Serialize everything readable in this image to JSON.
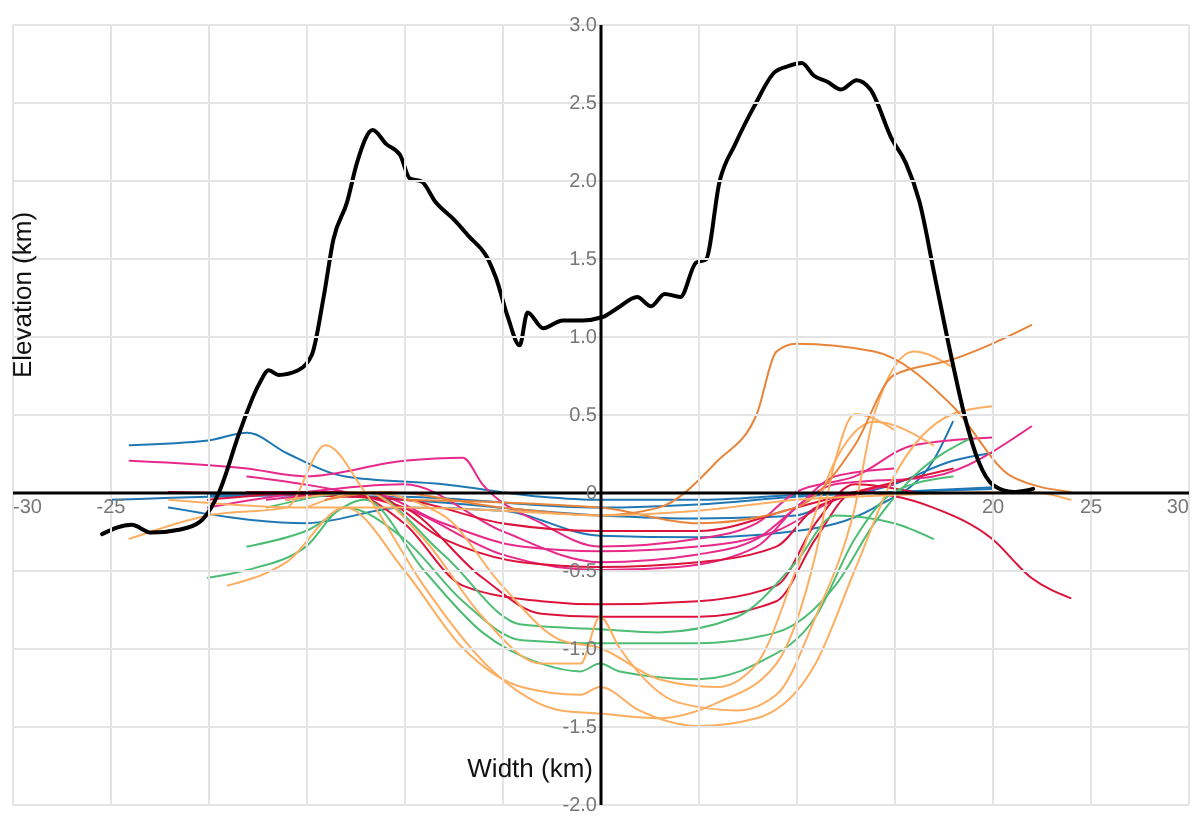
{
  "chart_data": {
    "type": "line",
    "xlabel": "Width (km)",
    "ylabel": "Elevation (km)",
    "xlim": [
      -30,
      30
    ],
    "ylim": [
      -2,
      3
    ],
    "xticks": [
      -30,
      -25,
      {
        "value": -20,
        "label": null
      },
      {
        "value": -15,
        "label": null
      },
      {
        "value": -10,
        "label": null
      },
      {
        "value": -5,
        "label": null
      },
      {
        "value": 0,
        "label": null
      },
      {
        "value": 5,
        "label": null
      },
      {
        "value": 10,
        "label": null
      },
      {
        "value": 15,
        "label": null
      },
      20,
      25,
      30
    ],
    "yticks": [
      {
        "value": -2,
        "label": "-2.0"
      },
      {
        "value": -1.5,
        "label": "-1.5"
      },
      {
        "value": -1,
        "label": "-1.0"
      },
      {
        "value": -0.5,
        "label": "-0.5"
      },
      0,
      {
        "value": 0.5,
        "label": "0.5"
      },
      {
        "value": 1,
        "label": "1.0"
      },
      {
        "value": 1.5,
        "label": "1.5"
      },
      {
        "value": 2,
        "label": "2.0"
      },
      {
        "value": 2.5,
        "label": "2.5"
      },
      {
        "value": 3,
        "label": "3.0"
      }
    ],
    "grid": true,
    "legend": false,
    "series": [
      {
        "color": "#1f77b4",
        "x": [
          -24,
          -20,
          -18,
          -16,
          -13,
          -8,
          -3,
          0,
          5,
          10,
          15,
          20
        ],
        "values": [
          0.3,
          0.33,
          0.38,
          0.25,
          0.1,
          0.05,
          -0.03,
          -0.05,
          -0.05,
          -0.02,
          0,
          0.03
        ]
      },
      {
        "color": "#1f77b4",
        "x": [
          -25,
          -15,
          -10,
          0,
          5,
          10,
          12,
          15,
          18,
          20
        ],
        "values": [
          -0.05,
          -0.02,
          -0.05,
          -0.15,
          -0.17,
          -0.15,
          -0.05,
          0.05,
          0.2,
          0.25
        ]
      },
      {
        "color": "#1f77b4",
        "x": [
          -22,
          -15,
          -10,
          -5,
          0,
          5,
          10,
          14,
          17,
          18
        ],
        "values": [
          -0.1,
          -0.2,
          -0.1,
          -0.12,
          -0.28,
          -0.29,
          -0.25,
          -0.1,
          0.2,
          0.45
        ]
      },
      {
        "color": "#1f77b4",
        "x": [
          -20,
          -10,
          0,
          5,
          10,
          15,
          20
        ],
        "values": [
          -0.02,
          -0.03,
          -0.1,
          -0.08,
          -0.03,
          0,
          0.02
        ]
      },
      {
        "color": "#e7298a",
        "x": [
          -24,
          -18,
          -15,
          -10,
          -7,
          -6,
          -3,
          0,
          5,
          8,
          10,
          13,
          16,
          20
        ],
        "values": [
          0.2,
          0.15,
          0.1,
          0.2,
          0.22,
          0.05,
          -0.2,
          -0.35,
          -0.3,
          -0.2,
          0,
          0.1,
          0.3,
          0.35
        ]
      },
      {
        "color": "#e7298a",
        "x": [
          -20,
          -15,
          -10,
          -5,
          0,
          5,
          8,
          10,
          12,
          15
        ],
        "values": [
          -0.1,
          0,
          0.05,
          -0.25,
          -0.45,
          -0.4,
          -0.3,
          -0.1,
          0.1,
          0.15
        ]
      },
      {
        "color": "#e7298a",
        "x": [
          -18,
          -13,
          -10,
          -5,
          0,
          4,
          8,
          10,
          12,
          17,
          22
        ],
        "values": [
          0.1,
          0,
          -0.1,
          -0.4,
          -0.5,
          -0.48,
          -0.35,
          -0.1,
          0.05,
          0.1,
          0.42
        ]
      },
      {
        "color": "#e7298a",
        "x": [
          -17,
          -12,
          -8,
          -4,
          0,
          5,
          9,
          12,
          15
        ],
        "values": [
          -0.05,
          0,
          -0.2,
          -0.35,
          -0.38,
          -0.35,
          -0.25,
          -0.05,
          0.05
        ]
      },
      {
        "color": "#dc143c",
        "x": [
          -20,
          -14,
          -10,
          -6,
          -3,
          0,
          5,
          9,
          11,
          13,
          17,
          20,
          22,
          24
        ],
        "values": [
          -0.05,
          0,
          -0.1,
          -0.55,
          -0.78,
          -0.8,
          -0.8,
          -0.7,
          -0.3,
          0,
          -0.1,
          -0.3,
          -0.55,
          -0.68
        ]
      },
      {
        "color": "#dc143c",
        "x": [
          -18,
          -13,
          -10,
          -7,
          -3,
          0,
          5,
          9,
          11,
          13,
          16
        ],
        "values": [
          0,
          0,
          -0.2,
          -0.6,
          -0.7,
          -0.72,
          -0.7,
          -0.6,
          -0.2,
          0.05,
          0
        ]
      },
      {
        "color": "#dc143c",
        "x": [
          -16,
          -12,
          -8,
          -4,
          0,
          5,
          9,
          11,
          14
        ],
        "values": [
          -0.05,
          0,
          -0.3,
          -0.45,
          -0.48,
          -0.45,
          -0.35,
          -0.1,
          0
        ]
      },
      {
        "color": "#dc143c",
        "x": [
          -22,
          -15,
          -10,
          -5,
          0,
          5,
          10,
          13,
          18
        ],
        "values": [
          0,
          -0.02,
          -0.05,
          -0.2,
          -0.25,
          -0.25,
          -0.1,
          0,
          0.15
        ]
      },
      {
        "color": "#4dbd74",
        "x": [
          -20,
          -18,
          -15,
          -13,
          -10,
          -7,
          -4,
          0,
          5,
          9,
          12,
          14,
          16,
          19
        ],
        "values": [
          -0.55,
          -0.5,
          -0.35,
          -0.1,
          -0.3,
          -0.7,
          -0.95,
          -0.97,
          -0.97,
          -0.9,
          -0.6,
          -0.2,
          0.1,
          0.35
        ]
      },
      {
        "color": "#4dbd74",
        "x": [
          -18,
          -15,
          -12,
          -9,
          -6,
          -3,
          -1,
          0,
          1,
          5,
          8,
          11,
          13,
          15,
          18
        ],
        "values": [
          -0.35,
          -0.25,
          -0.05,
          -0.5,
          -0.9,
          -1.1,
          -1.15,
          -1.1,
          -1.15,
          -1.2,
          -1.1,
          -0.8,
          -0.3,
          0,
          0.1
        ]
      },
      {
        "color": "#4dbd74",
        "x": [
          -17,
          -12,
          -8,
          -4,
          0,
          3,
          7,
          10,
          12,
          15,
          17
        ],
        "values": [
          -0.1,
          0,
          -0.4,
          -0.85,
          -0.88,
          -0.9,
          -0.8,
          -0.45,
          -0.15,
          -0.2,
          -0.3
        ]
      },
      {
        "color": "#fdae61",
        "x": [
          -24,
          -20,
          -16,
          -14,
          -12,
          -9,
          -5,
          -2,
          0,
          3,
          6,
          9,
          11,
          12,
          13,
          15
        ],
        "values": [
          -0.3,
          -0.15,
          -0.1,
          0.3,
          0,
          -0.6,
          -1.2,
          -1.4,
          -1.42,
          -1.45,
          -1.35,
          -1.1,
          -0.4,
          0.2,
          0.5,
          0.4
        ]
      },
      {
        "color": "#fdae61",
        "x": [
          -19,
          -16,
          -13,
          -10,
          -7,
          -4,
          -1,
          0,
          2,
          5,
          8,
          11,
          13,
          15,
          18,
          20
        ],
        "values": [
          -0.6,
          -0.45,
          -0.1,
          -0.5,
          -1,
          -1.25,
          -1.3,
          -1.25,
          -1.4,
          -1.5,
          -1.45,
          -1.1,
          -0.5,
          0.1,
          0.5,
          0.55
        ]
      },
      {
        "color": "#fdae61",
        "x": [
          -16,
          -12,
          -9,
          -6,
          -3,
          -1,
          0,
          1,
          4,
          7,
          9,
          11,
          13,
          14,
          16,
          18
        ],
        "values": [
          -0.05,
          0,
          -0.3,
          -0.8,
          -1.1,
          -1.1,
          -0.8,
          -1,
          -1.35,
          -1.4,
          -1.3,
          -0.8,
          -0.1,
          0.5,
          0.9,
          0.8
        ]
      },
      {
        "color": "#fdae61",
        "x": [
          -15,
          -12,
          -8,
          -5,
          -2,
          0,
          3,
          6,
          8,
          10,
          12,
          14,
          17
        ],
        "values": [
          -0.1,
          0,
          -0.15,
          -0.6,
          -0.95,
          -1,
          -1.2,
          -1.25,
          -1.1,
          -0.5,
          0.2,
          0.45,
          0.3
        ]
      },
      {
        "color": "#e8853a",
        "x": [
          -14,
          -11,
          -5,
          0,
          3,
          6,
          8,
          9,
          10,
          14,
          18,
          21,
          24
        ],
        "values": [
          -0.05,
          0,
          -0.1,
          -0.15,
          -0.1,
          0.2,
          0.5,
          0.9,
          0.95,
          0.9,
          0.55,
          0.1,
          0
        ]
      },
      {
        "color": "#e8853a",
        "x": [
          -10,
          0,
          5,
          10,
          13,
          15,
          18,
          20,
          22
        ],
        "values": [
          -0.05,
          -0.1,
          -0.2,
          -0.1,
          0.3,
          0.75,
          0.85,
          0.95,
          1.07
        ]
      },
      {
        "color": "#fdae61",
        "x": [
          -22,
          -15,
          -10,
          -5,
          0,
          5,
          10,
          15,
          22,
          24
        ],
        "values": [
          -0.05,
          -0.1,
          -0.1,
          -0.12,
          -0.15,
          -0.12,
          -0.05,
          -0.02,
          0,
          -0.05
        ]
      },
      {
        "color": "#000000",
        "x": [
          -25.4,
          -23.9,
          -22.9,
          -21.4,
          -20.4,
          -19.4,
          -18.4,
          -17.4,
          -16.9,
          -16.4,
          -15.4,
          -14.7,
          -14.1,
          -13.6,
          -12.9,
          -12.4,
          -11.6,
          -10.9,
          -10.2,
          -9.7,
          -9.1,
          -8.4,
          -7.4,
          -6.7,
          -5.7,
          -5.3,
          -4.7,
          -4.1,
          -3.7,
          -2.9,
          -1.9,
          -0.9,
          0.1,
          0.9,
          1.9,
          2.6,
          3.3,
          4.1,
          4.9,
          5.4,
          6.1,
          6.9,
          7.9,
          8.9,
          9.6,
          10.3,
          10.9,
          11.6,
          12.3,
          13.1,
          13.8,
          14.9,
          15.6,
          16.3,
          17.1,
          17.9,
          18.7,
          19.3,
          20.1,
          21.1,
          22.1
        ],
        "values": [
          -0.27,
          -0.21,
          -0.26,
          -0.24,
          -0.19,
          0.01,
          0.38,
          0.69,
          0.78,
          0.75,
          0.78,
          0.88,
          1.25,
          1.62,
          1.86,
          2.11,
          2.32,
          2.23,
          2.16,
          2.01,
          1.99,
          1.86,
          1.74,
          1.64,
          1.49,
          1.37,
          1.12,
          0.94,
          1.15,
          1.05,
          1.1,
          1.1,
          1.12,
          1.18,
          1.25,
          1.19,
          1.27,
          1.25,
          1.47,
          1.49,
          1.99,
          2.23,
          2.48,
          2.69,
          2.73,
          2.75,
          2.67,
          2.63,
          2.58,
          2.64,
          2.58,
          2.26,
          2.11,
          1.86,
          1.37,
          0.88,
          0.44,
          0.2,
          0.04,
          0,
          0.02
        ]
      }
    ]
  }
}
